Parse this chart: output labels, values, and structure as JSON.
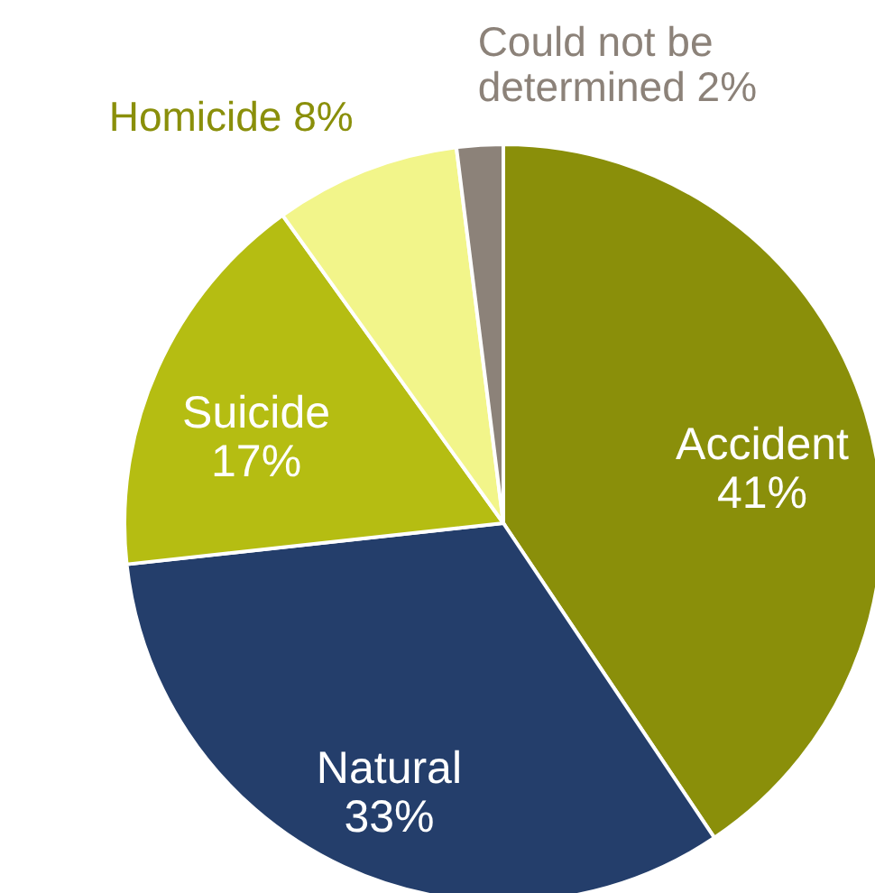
{
  "chart_data": {
    "type": "pie",
    "categories": [
      "Accident",
      "Natural",
      "Suicide",
      "Homicide",
      "Could not be determined"
    ],
    "values": [
      41,
      33,
      17,
      8,
      2
    ],
    "colors": [
      "#8a8f0a",
      "#243e6b",
      "#b5bd12",
      "#f2f58a",
      "#8c8279"
    ],
    "value_labels": [
      "41%",
      "33%",
      "17%",
      "8%",
      "2%"
    ]
  }
}
